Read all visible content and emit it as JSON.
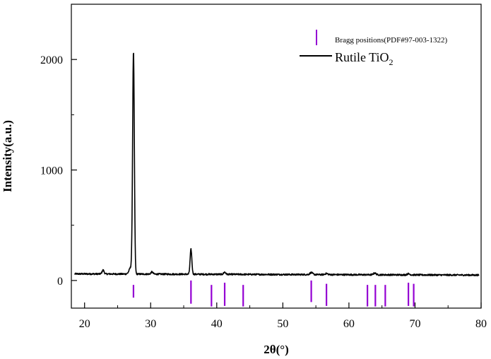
{
  "chart_data": {
    "type": "line",
    "title": "",
    "xlabel": "2θ(°)",
    "ylabel": "Intensity(a.u.)",
    "xlim": [
      18,
      80
    ],
    "ylim": [
      -250,
      2500
    ],
    "x_ticks": [
      20,
      30,
      40,
      50,
      60,
      70,
      80
    ],
    "y_ticks": [
      0,
      1000,
      2000
    ],
    "x_tick_labels": [
      "20",
      "30",
      "40",
      "50",
      "60",
      "70",
      "80"
    ],
    "y_tick_labels": [
      "0",
      "1000",
      "2000"
    ],
    "colors": {
      "pattern": "#000000",
      "bragg": "#9400D3"
    },
    "series": [
      {
        "name": "Rutile TiO2",
        "baseline": 60,
        "peaks": [
          {
            "x": 22.8,
            "height": 35,
            "width": 0.15
          },
          {
            "x": 27.4,
            "height": 2000,
            "width": 0.13
          },
          {
            "x": 27.0,
            "height": 60,
            "width": 0.25
          },
          {
            "x": 30.2,
            "height": 20,
            "width": 0.15
          },
          {
            "x": 36.1,
            "height": 225,
            "width": 0.13
          },
          {
            "x": 41.2,
            "height": 20,
            "width": 0.15
          },
          {
            "x": 54.3,
            "height": 18,
            "width": 0.2
          },
          {
            "x": 56.6,
            "height": 10,
            "width": 0.2
          },
          {
            "x": 63.9,
            "height": 15,
            "width": 0.2
          },
          {
            "x": 69.0,
            "height": 10,
            "width": 0.2
          }
        ]
      }
    ],
    "bragg_positions": [
      {
        "x": 27.4,
        "top": -40,
        "bottom": -155
      },
      {
        "x": 36.1,
        "top": 0,
        "bottom": -210
      },
      {
        "x": 39.2,
        "top": -40,
        "bottom": -235
      },
      {
        "x": 41.2,
        "top": -20,
        "bottom": -230
      },
      {
        "x": 44.0,
        "top": -40,
        "bottom": -235
      },
      {
        "x": 54.3,
        "top": 0,
        "bottom": -195
      },
      {
        "x": 56.6,
        "top": -30,
        "bottom": -230
      },
      {
        "x": 62.8,
        "top": -40,
        "bottom": -235
      },
      {
        "x": 64.0,
        "top": -40,
        "bottom": -235
      },
      {
        "x": 65.5,
        "top": -40,
        "bottom": -235
      },
      {
        "x": 69.0,
        "top": -20,
        "bottom": -230
      },
      {
        "x": 69.8,
        "top": -30,
        "bottom": -235
      }
    ],
    "legend": {
      "position": "top-right",
      "entries": [
        {
          "label": "Bragg positions(PDF#97-003-1322)",
          "marker": "vertical-bar"
        },
        {
          "label_main": "Rutile TiO",
          "label_sub": "2",
          "marker": "line"
        }
      ]
    }
  }
}
